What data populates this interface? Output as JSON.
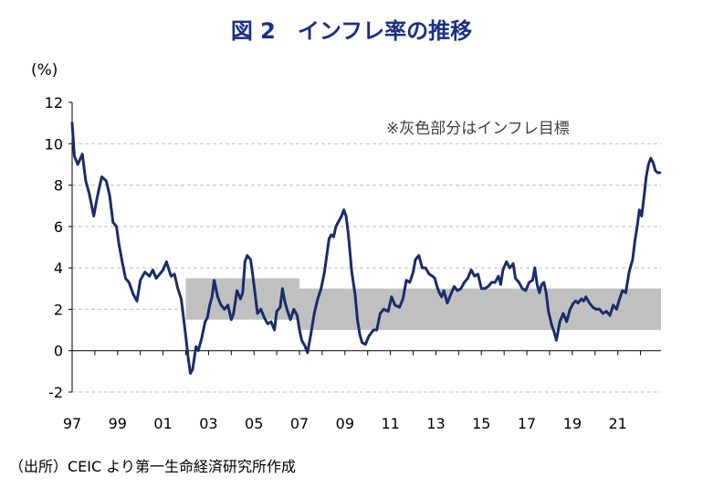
{
  "title": "図 2　インフレ率の推移",
  "source": "（出所）CEIC より第一生命経済研究所作成",
  "colors": {
    "line": "#1b2c6b",
    "band": "#c0c0c0",
    "title": "#1b2f86",
    "negative_tick": "#e00000"
  },
  "chart_data": {
    "type": "line",
    "title": "図 2　インフレ率の推移",
    "ylabel": "(%)",
    "xlabel": "",
    "ylim": [
      -2,
      12
    ],
    "xlim": [
      1997.0,
      2022.9
    ],
    "grid": "horizontal-dashed",
    "y_ticks": [
      "-2",
      "0",
      "2",
      "4",
      "6",
      "8",
      "10",
      "12"
    ],
    "x_ticks": [
      "97",
      "99",
      "01",
      "03",
      "05",
      "07",
      "09",
      "11",
      "13",
      "15",
      "17",
      "19",
      "21"
    ],
    "annotation": "※灰色部分はインフレ目標",
    "target_band": [
      {
        "x": 2002.0,
        "low": 1.5,
        "high": 3.5
      },
      {
        "x": 2007.0,
        "low": 1.5,
        "high": 3.5
      },
      {
        "x": 2007.0,
        "low": 1.0,
        "high": 3.0
      },
      {
        "x": 2022.9,
        "low": 1.0,
        "high": 3.0
      }
    ],
    "series": [
      {
        "points": [
          [
            1997.0,
            11.0
          ],
          [
            1997.1,
            9.4
          ],
          [
            1997.25,
            9.0
          ],
          [
            1997.45,
            9.5
          ],
          [
            1997.6,
            8.2
          ],
          [
            1997.75,
            7.6
          ],
          [
            1997.95,
            6.5
          ],
          [
            1998.1,
            7.4
          ],
          [
            1998.3,
            8.4
          ],
          [
            1998.5,
            8.2
          ],
          [
            1998.65,
            7.5
          ],
          [
            1998.8,
            6.2
          ],
          [
            1998.95,
            6.0
          ],
          [
            1999.05,
            5.2
          ],
          [
            1999.2,
            4.3
          ],
          [
            1999.35,
            3.5
          ],
          [
            1999.5,
            3.3
          ],
          [
            1999.7,
            2.7
          ],
          [
            1999.85,
            2.4
          ],
          [
            2000.0,
            3.4
          ],
          [
            2000.2,
            3.8
          ],
          [
            2000.4,
            3.6
          ],
          [
            2000.55,
            3.9
          ],
          [
            2000.7,
            3.5
          ],
          [
            2000.85,
            3.7
          ],
          [
            2001.0,
            3.9
          ],
          [
            2001.15,
            4.3
          ],
          [
            2001.35,
            3.6
          ],
          [
            2001.5,
            3.7
          ],
          [
            2001.65,
            3.0
          ],
          [
            2001.8,
            2.5
          ],
          [
            2001.9,
            1.6
          ],
          [
            2002.0,
            0.7
          ],
          [
            2002.1,
            -0.3
          ],
          [
            2002.2,
            -1.1
          ],
          [
            2002.3,
            -0.9
          ],
          [
            2002.45,
            0.2
          ],
          [
            2002.55,
            0.0
          ],
          [
            2002.7,
            0.6
          ],
          [
            2002.85,
            1.4
          ],
          [
            2002.95,
            1.6
          ],
          [
            2003.05,
            2.2
          ],
          [
            2003.15,
            2.6
          ],
          [
            2003.25,
            3.4
          ],
          [
            2003.4,
            2.6
          ],
          [
            2003.55,
            2.2
          ],
          [
            2003.7,
            2.0
          ],
          [
            2003.85,
            2.2
          ],
          [
            2004.0,
            1.5
          ],
          [
            2004.1,
            1.8
          ],
          [
            2004.25,
            2.9
          ],
          [
            2004.4,
            2.5
          ],
          [
            2004.5,
            2.8
          ],
          [
            2004.6,
            4.3
          ],
          [
            2004.7,
            4.6
          ],
          [
            2004.85,
            4.4
          ],
          [
            2004.95,
            3.6
          ],
          [
            2005.05,
            2.7
          ],
          [
            2005.15,
            1.8
          ],
          [
            2005.3,
            2.0
          ],
          [
            2005.45,
            1.6
          ],
          [
            2005.6,
            1.3
          ],
          [
            2005.75,
            1.4
          ],
          [
            2005.9,
            1.0
          ],
          [
            2006.0,
            1.9
          ],
          [
            2006.15,
            2.1
          ],
          [
            2006.25,
            3.0
          ],
          [
            2006.35,
            2.4
          ],
          [
            2006.45,
            2.0
          ],
          [
            2006.6,
            1.5
          ],
          [
            2006.75,
            2.0
          ],
          [
            2006.9,
            1.7
          ],
          [
            2007.0,
            1.0
          ],
          [
            2007.1,
            0.5
          ],
          [
            2007.25,
            0.2
          ],
          [
            2007.35,
            -0.1
          ],
          [
            2007.5,
            0.8
          ],
          [
            2007.65,
            1.8
          ],
          [
            2007.8,
            2.5
          ],
          [
            2007.95,
            3.0
          ],
          [
            2008.1,
            3.8
          ],
          [
            2008.2,
            4.6
          ],
          [
            2008.3,
            5.4
          ],
          [
            2008.4,
            5.6
          ],
          [
            2008.5,
            5.5
          ],
          [
            2008.6,
            6.0
          ],
          [
            2008.75,
            6.3
          ],
          [
            2008.85,
            6.5
          ],
          [
            2008.95,
            6.8
          ],
          [
            2009.05,
            6.5
          ],
          [
            2009.15,
            5.6
          ],
          [
            2009.3,
            3.8
          ],
          [
            2009.45,
            2.7
          ],
          [
            2009.55,
            1.5
          ],
          [
            2009.65,
            0.8
          ],
          [
            2009.75,
            0.4
          ],
          [
            2009.9,
            0.3
          ],
          [
            2010.05,
            0.7
          ],
          [
            2010.25,
            1.0
          ],
          [
            2010.4,
            1.0
          ],
          [
            2010.55,
            1.8
          ],
          [
            2010.7,
            2.0
          ],
          [
            2010.9,
            1.9
          ],
          [
            2011.05,
            2.6
          ],
          [
            2011.2,
            2.2
          ],
          [
            2011.4,
            2.1
          ],
          [
            2011.55,
            2.5
          ],
          [
            2011.7,
            3.4
          ],
          [
            2011.85,
            3.3
          ],
          [
            2012.0,
            3.8
          ],
          [
            2012.1,
            4.4
          ],
          [
            2012.25,
            4.6
          ],
          [
            2012.4,
            4.0
          ],
          [
            2012.55,
            4.0
          ],
          [
            2012.7,
            3.7
          ],
          [
            2012.85,
            3.6
          ],
          [
            2012.95,
            3.5
          ],
          [
            2013.05,
            3.1
          ],
          [
            2013.15,
            2.8
          ],
          [
            2013.25,
            2.6
          ],
          [
            2013.35,
            2.9
          ],
          [
            2013.5,
            2.3
          ],
          [
            2013.65,
            2.7
          ],
          [
            2013.8,
            3.1
          ],
          [
            2013.95,
            2.9
          ],
          [
            2014.1,
            3.0
          ],
          [
            2014.25,
            3.3
          ],
          [
            2014.4,
            3.5
          ],
          [
            2014.55,
            3.9
          ],
          [
            2014.7,
            3.6
          ],
          [
            2014.85,
            3.7
          ],
          [
            2015.0,
            3.0
          ],
          [
            2015.15,
            3.0
          ],
          [
            2015.3,
            3.1
          ],
          [
            2015.45,
            3.3
          ],
          [
            2015.6,
            3.3
          ],
          [
            2015.75,
            3.6
          ],
          [
            2015.85,
            3.2
          ],
          [
            2015.95,
            3.9
          ],
          [
            2016.1,
            4.3
          ],
          [
            2016.25,
            4.0
          ],
          [
            2016.4,
            4.2
          ],
          [
            2016.5,
            3.5
          ],
          [
            2016.65,
            3.3
          ],
          [
            2016.8,
            3.0
          ],
          [
            2016.95,
            2.9
          ],
          [
            2017.1,
            3.3
          ],
          [
            2017.25,
            3.4
          ],
          [
            2017.35,
            4.0
          ],
          [
            2017.45,
            3.2
          ],
          [
            2017.55,
            2.8
          ],
          [
            2017.65,
            3.2
          ],
          [
            2017.75,
            3.3
          ],
          [
            2017.85,
            2.8
          ],
          [
            2017.95,
            1.9
          ],
          [
            2018.1,
            1.2
          ],
          [
            2018.2,
            0.9
          ],
          [
            2018.3,
            0.5
          ],
          [
            2018.45,
            1.4
          ],
          [
            2018.6,
            1.8
          ],
          [
            2018.75,
            1.4
          ],
          [
            2018.9,
            2.0
          ],
          [
            2019.05,
            2.3
          ],
          [
            2019.15,
            2.4
          ],
          [
            2019.25,
            2.3
          ],
          [
            2019.4,
            2.5
          ],
          [
            2019.5,
            2.4
          ],
          [
            2019.6,
            2.6
          ],
          [
            2019.75,
            2.3
          ],
          [
            2019.9,
            2.1
          ],
          [
            2020.05,
            2.0
          ],
          [
            2020.2,
            2.0
          ],
          [
            2020.35,
            1.8
          ],
          [
            2020.5,
            1.9
          ],
          [
            2020.65,
            1.7
          ],
          [
            2020.8,
            2.2
          ],
          [
            2020.95,
            2.0
          ],
          [
            2021.05,
            2.4
          ],
          [
            2021.2,
            2.9
          ],
          [
            2021.35,
            2.8
          ],
          [
            2021.5,
            3.8
          ],
          [
            2021.65,
            4.4
          ],
          [
            2021.75,
            5.3
          ],
          [
            2021.85,
            6.0
          ],
          [
            2021.95,
            6.8
          ],
          [
            2022.05,
            6.5
          ],
          [
            2022.15,
            7.4
          ],
          [
            2022.25,
            8.4
          ],
          [
            2022.35,
            9.0
          ],
          [
            2022.45,
            9.3
          ],
          [
            2022.55,
            9.1
          ],
          [
            2022.65,
            8.7
          ],
          [
            2022.75,
            8.6
          ],
          [
            2022.85,
            8.6
          ]
        ]
      }
    ]
  }
}
